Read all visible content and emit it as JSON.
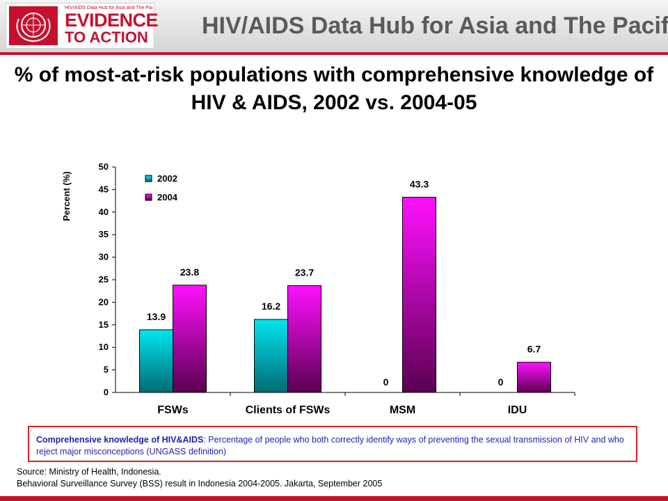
{
  "header": {
    "logo_small_text": "HIV/AIDS Data Hub for Asia and The Pacific",
    "logo_line1": "EVIDENCE",
    "logo_line2": "TO ACTION",
    "hub_title": "HIV/AIDS Data Hub for Asia and The Pacific",
    "brand_color": "#c8102e"
  },
  "title": "% of most-at-risk populations with comprehensive knowledge of HIV & AIDS, 2002 vs. 2004-05",
  "definition": {
    "term": "Comprehensive knowledge of HIV&AIDS",
    "text": ": Percentage of people who both correctly identify ways of preventing the sexual transmission of HIV and who reject major misconceptions (UNGASS definition)"
  },
  "source": {
    "line1": "Source: Ministry of Health, Indonesia.",
    "line2": "Behavioral Surveillance Survey (BSS) result in Indonesia 2004-2005. Jakarta, September 2005"
  },
  "chart_data": {
    "type": "bar",
    "categories": [
      "FSWs",
      "Clients of FSWs",
      "MSM",
      "IDU"
    ],
    "series": [
      {
        "name": "2002",
        "values": [
          13.9,
          16.2,
          0,
          0
        ],
        "color_top": "#00e5ee",
        "color_bottom": "#006b75"
      },
      {
        "name": "2004",
        "values": [
          23.8,
          23.7,
          43.3,
          6.7
        ],
        "color_top": "#ff10ff",
        "color_bottom": "#5a0050"
      }
    ],
    "ylabel": "Percent (%)",
    "ylim": [
      0,
      50
    ],
    "yticks": [
      0,
      5,
      10,
      15,
      20,
      25,
      30,
      35,
      40,
      45,
      50
    ],
    "legend_position": "top-left",
    "grid": false
  }
}
